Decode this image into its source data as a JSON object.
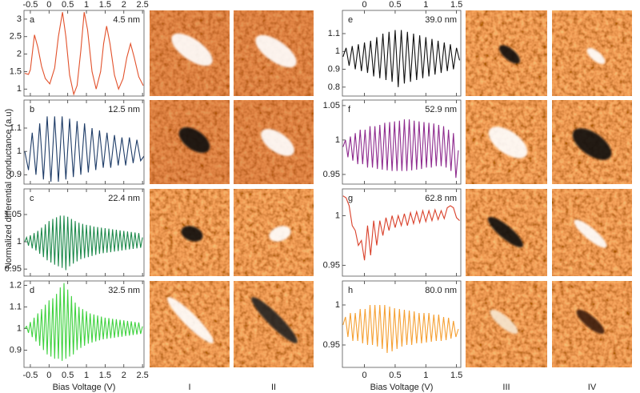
{
  "y_label": "Normalized differential conductance (a.u)",
  "x_label": "Bias Voltage (V)",
  "image_labels": [
    "I",
    "II",
    "III",
    "IV"
  ],
  "chart_data": [
    {
      "type": "line",
      "letter": "a",
      "annotation": "4.5 nm",
      "color": "#e2512b",
      "x": [
        -0.65,
        -0.55,
        -0.5,
        -0.45,
        -0.39,
        -0.3,
        -0.2,
        -0.1,
        0.02,
        0.15,
        0.25,
        0.36,
        0.45,
        0.55,
        0.66,
        0.75,
        0.85,
        0.94,
        1.03,
        1.15,
        1.26,
        1.38,
        1.46,
        1.54,
        1.63,
        1.75,
        1.86,
        1.98,
        2.08,
        2.18,
        2.28,
        2.4,
        2.52
      ],
      "values": [
        1.45,
        1.42,
        1.55,
        2.0,
        2.55,
        2.2,
        1.65,
        1.3,
        1.15,
        1.6,
        2.5,
        3.2,
        2.5,
        1.4,
        0.85,
        1.1,
        2.1,
        3.2,
        2.7,
        1.5,
        1.0,
        1.5,
        2.3,
        2.8,
        2.3,
        1.4,
        1.0,
        1.3,
        1.9,
        2.3,
        1.9,
        1.35,
        1.1
      ],
      "xlim": [
        -0.67,
        2.54
      ],
      "xticks": [
        -0.5,
        0,
        0.5,
        1,
        1.5,
        2,
        2.5
      ],
      "ylim": [
        0.8,
        3.25
      ],
      "yticks": [
        1,
        1.5,
        2,
        2.5,
        3
      ]
    },
    {
      "type": "line",
      "letter": "b",
      "annotation": "12.5 nm",
      "color": "#1f3d68",
      "x": [
        -0.65,
        -0.55,
        -0.45,
        -0.35,
        -0.25,
        -0.15,
        -0.05,
        0.05,
        0.15,
        0.25,
        0.35,
        0.45,
        0.55,
        0.65,
        0.75,
        0.85,
        0.95,
        1.05,
        1.15,
        1.25,
        1.35,
        1.45,
        1.55,
        1.65,
        1.75,
        1.85,
        1.95,
        2.05,
        2.15,
        2.25,
        2.35,
        2.45,
        2.54
      ],
      "values": [
        1.0,
        0.92,
        1.08,
        0.9,
        1.12,
        0.88,
        1.15,
        0.87,
        1.15,
        0.87,
        1.15,
        0.88,
        1.14,
        0.89,
        1.13,
        0.9,
        1.12,
        0.91,
        1.1,
        0.92,
        1.09,
        0.93,
        1.08,
        0.93,
        1.07,
        0.94,
        1.06,
        0.94,
        1.06,
        0.95,
        1.05,
        0.96,
        0.98
      ],
      "xlim": [
        -0.67,
        2.54
      ],
      "xticks": [
        -0.5,
        0,
        0.5,
        1,
        1.5,
        2,
        2.5
      ],
      "ylim": [
        0.86,
        1.22
      ],
      "yticks": [
        0.9,
        1,
        1.1
      ]
    },
    {
      "type": "line",
      "letter": "c",
      "annotation": "22.4 nm",
      "color": "#1e8a4c",
      "x": [
        -0.65,
        -0.6,
        -0.55,
        -0.5,
        -0.45,
        -0.4,
        -0.35,
        -0.3,
        -0.25,
        -0.2,
        -0.15,
        -0.1,
        -0.05,
        0,
        0.05,
        0.1,
        0.15,
        0.2,
        0.25,
        0.3,
        0.35,
        0.4,
        0.45,
        0.5,
        0.55,
        0.6,
        0.65,
        0.7,
        0.75,
        0.8,
        0.85,
        0.9,
        0.95,
        1.0,
        1.05,
        1.1,
        1.15,
        1.2,
        1.25,
        1.3,
        1.35,
        1.4,
        1.45,
        1.5,
        1.55,
        1.6,
        1.65,
        1.7,
        1.75,
        1.8,
        1.85,
        1.9,
        1.95,
        2.0,
        2.05,
        2.1,
        2.15,
        2.2,
        2.25,
        2.3,
        2.35,
        2.4,
        2.45,
        2.5
      ],
      "values": [
        1.0,
        1.008,
        0.993,
        1.012,
        0.988,
        1.016,
        0.984,
        1.02,
        0.978,
        1.026,
        0.972,
        1.032,
        0.966,
        1.038,
        0.962,
        1.042,
        0.958,
        1.045,
        0.955,
        1.048,
        0.952,
        1.048,
        0.948,
        1.046,
        0.955,
        1.042,
        0.96,
        1.038,
        0.964,
        1.035,
        0.968,
        1.033,
        0.97,
        1.031,
        0.972,
        1.03,
        0.974,
        1.028,
        0.976,
        1.027,
        0.978,
        1.026,
        0.979,
        1.025,
        0.98,
        1.024,
        0.981,
        1.023,
        0.982,
        1.022,
        0.983,
        1.021,
        0.984,
        1.02,
        0.985,
        1.019,
        0.986,
        1.018,
        0.987,
        1.017,
        0.988,
        1.016,
        0.989,
        1.008
      ],
      "xlim": [
        -0.67,
        2.54
      ],
      "xticks": [
        -0.5,
        0,
        0.5,
        1,
        1.5,
        2,
        2.5
      ],
      "ylim": [
        0.937,
        1.097
      ],
      "yticks": [
        0.95,
        1,
        1.05
      ]
    },
    {
      "type": "line",
      "letter": "d",
      "annotation": "32.5 nm",
      "color": "#3fd23f",
      "x": [
        -0.65,
        -0.6,
        -0.55,
        -0.5,
        -0.45,
        -0.4,
        -0.35,
        -0.3,
        -0.25,
        -0.2,
        -0.15,
        -0.1,
        -0.05,
        0,
        0.05,
        0.1,
        0.15,
        0.2,
        0.25,
        0.3,
        0.35,
        0.4,
        0.45,
        0.5,
        0.55,
        0.6,
        0.65,
        0.7,
        0.75,
        0.8,
        0.85,
        0.9,
        0.95,
        1.0,
        1.05,
        1.1,
        1.15,
        1.2,
        1.25,
        1.3,
        1.35,
        1.4,
        1.45,
        1.5,
        1.55,
        1.6,
        1.65,
        1.7,
        1.75,
        1.8,
        1.85,
        1.9,
        1.95,
        2.0,
        2.05,
        2.1,
        2.15,
        2.2,
        2.25,
        2.3,
        2.35,
        2.4,
        2.45,
        2.5
      ],
      "values": [
        1.0,
        1.01,
        0.98,
        1.03,
        0.96,
        1.05,
        0.94,
        1.07,
        0.92,
        1.09,
        0.9,
        1.11,
        0.88,
        1.13,
        0.87,
        1.14,
        0.86,
        1.16,
        0.86,
        1.19,
        0.85,
        1.21,
        0.86,
        1.18,
        0.87,
        1.15,
        0.88,
        1.12,
        0.9,
        1.1,
        0.91,
        1.09,
        0.92,
        1.08,
        0.93,
        1.07,
        0.935,
        1.065,
        0.94,
        1.06,
        0.945,
        1.055,
        0.95,
        1.05,
        0.952,
        1.048,
        0.955,
        1.045,
        0.957,
        1.043,
        0.96,
        1.04,
        0.962,
        1.038,
        0.965,
        1.035,
        0.967,
        1.033,
        0.97,
        1.03,
        0.972,
        1.028,
        0.975,
        1.01
      ],
      "xlim": [
        -0.67,
        2.54
      ],
      "xticks": [
        -0.5,
        0,
        0.5,
        1,
        1.5,
        2,
        2.5
      ],
      "ylim": [
        0.82,
        1.22
      ],
      "yticks": [
        0.9,
        1,
        1.1,
        1.2
      ]
    },
    {
      "type": "line",
      "letter": "e",
      "annotation": "39.0 nm",
      "color": "#111111",
      "x": [
        -0.35,
        -0.3,
        -0.25,
        -0.2,
        -0.15,
        -0.1,
        -0.05,
        0,
        0.05,
        0.1,
        0.15,
        0.2,
        0.25,
        0.3,
        0.35,
        0.4,
        0.45,
        0.5,
        0.55,
        0.6,
        0.65,
        0.7,
        0.75,
        0.8,
        0.85,
        0.9,
        0.95,
        1.0,
        1.05,
        1.1,
        1.15,
        1.2,
        1.25,
        1.3,
        1.35,
        1.4,
        1.45,
        1.5,
        1.55
      ],
      "values": [
        0.97,
        1.02,
        0.92,
        1.03,
        0.9,
        1.04,
        0.89,
        1.05,
        0.88,
        1.06,
        0.86,
        1.08,
        0.85,
        1.1,
        0.84,
        1.11,
        0.83,
        1.12,
        0.8,
        1.12,
        0.82,
        1.11,
        0.83,
        1.1,
        0.84,
        1.09,
        0.85,
        1.08,
        0.86,
        1.07,
        0.87,
        1.06,
        0.88,
        1.05,
        0.89,
        1.04,
        0.9,
        1.02,
        0.95
      ],
      "xlim": [
        -0.36,
        1.57
      ],
      "xticks": [
        0,
        0.5,
        1,
        1.5
      ],
      "ylim": [
        0.75,
        1.23
      ],
      "yticks": [
        0.8,
        0.9,
        1,
        1.1
      ]
    },
    {
      "type": "line",
      "letter": "f",
      "annotation": "52.9 nm",
      "color": "#8e2b8e",
      "x": [
        -0.35,
        -0.31,
        -0.27,
        -0.23,
        -0.19,
        -0.15,
        -0.11,
        -0.07,
        -0.03,
        0.01,
        0.05,
        0.09,
        0.13,
        0.17,
        0.21,
        0.25,
        0.29,
        0.33,
        0.37,
        0.41,
        0.45,
        0.49,
        0.53,
        0.57,
        0.61,
        0.65,
        0.69,
        0.73,
        0.77,
        0.81,
        0.85,
        0.89,
        0.93,
        0.97,
        1.01,
        1.05,
        1.09,
        1.13,
        1.17,
        1.21,
        1.25,
        1.29,
        1.33,
        1.37,
        1.41,
        1.45,
        1.49,
        1.53
      ],
      "values": [
        0.99,
        1.0,
        0.975,
        1.005,
        0.97,
        1.01,
        0.965,
        1.015,
        0.965,
        1.015,
        0.96,
        1.02,
        0.96,
        1.02,
        0.958,
        1.022,
        0.957,
        1.025,
        0.956,
        1.026,
        0.955,
        1.027,
        0.955,
        1.028,
        0.955,
        1.03,
        0.955,
        1.03,
        0.956,
        1.028,
        0.957,
        1.027,
        0.958,
        1.026,
        0.96,
        1.025,
        0.96,
        1.024,
        0.962,
        1.022,
        0.962,
        1.02,
        0.96,
        1.015,
        0.955,
        1.01,
        0.945,
        0.985
      ],
      "xlim": [
        -0.36,
        1.57
      ],
      "xticks": [
        0,
        0.5,
        1,
        1.5
      ],
      "ylim": [
        0.936,
        1.058
      ],
      "yticks": [
        0.95,
        1,
        1.05
      ]
    },
    {
      "type": "line",
      "letter": "g",
      "annotation": "62.8 nm",
      "color": "#d9402a",
      "x": [
        -0.35,
        -0.3,
        -0.25,
        -0.2,
        -0.15,
        -0.1,
        -0.05,
        0,
        0.05,
        0.1,
        0.15,
        0.2,
        0.25,
        0.3,
        0.35,
        0.4,
        0.45,
        0.5,
        0.55,
        0.6,
        0.65,
        0.7,
        0.75,
        0.8,
        0.85,
        0.9,
        0.95,
        1.0,
        1.05,
        1.1,
        1.15,
        1.2,
        1.25,
        1.3,
        1.35,
        1.4,
        1.45,
        1.5,
        1.55
      ],
      "values": [
        1.02,
        1.018,
        1.01,
        0.99,
        0.985,
        0.97,
        0.975,
        0.955,
        0.99,
        0.96,
        0.995,
        0.97,
        0.995,
        0.98,
        0.998,
        0.985,
        1.0,
        0.988,
        1.0,
        0.99,
        1.002,
        0.99,
        1.003,
        0.992,
        1.004,
        0.993,
        1.005,
        0.994,
        1.005,
        0.995,
        1.006,
        0.996,
        1.005,
        0.997,
        1.008,
        1.01,
        1.008,
        0.998,
        0.995
      ],
      "xlim": [
        -0.36,
        1.57
      ],
      "xticks": [
        0,
        0.5,
        1,
        1.5
      ],
      "ylim": [
        0.939,
        1.027
      ],
      "yticks": [
        0.95,
        1
      ]
    },
    {
      "type": "line",
      "letter": "h",
      "annotation": "80.0 nm",
      "color": "#f5a033",
      "x": [
        -0.35,
        -0.31,
        -0.27,
        -0.23,
        -0.19,
        -0.15,
        -0.11,
        -0.07,
        -0.03,
        0.01,
        0.05,
        0.09,
        0.13,
        0.17,
        0.21,
        0.25,
        0.29,
        0.33,
        0.37,
        0.41,
        0.45,
        0.49,
        0.53,
        0.57,
        0.61,
        0.65,
        0.69,
        0.73,
        0.77,
        0.81,
        0.85,
        0.89,
        0.93,
        0.97,
        1.01,
        1.05,
        1.09,
        1.13,
        1.17,
        1.21,
        1.25,
        1.29,
        1.33,
        1.37,
        1.41,
        1.45,
        1.49,
        1.53
      ],
      "values": [
        0.975,
        0.985,
        0.96,
        0.99,
        0.955,
        0.99,
        0.955,
        0.995,
        0.952,
        0.995,
        0.95,
        1.0,
        0.95,
        1.0,
        0.948,
        1.0,
        0.945,
        1.0,
        0.94,
        0.998,
        0.942,
        0.996,
        0.945,
        0.995,
        0.948,
        0.994,
        0.95,
        0.993,
        0.95,
        0.992,
        0.952,
        0.99,
        0.952,
        0.99,
        0.953,
        0.99,
        0.954,
        0.988,
        0.955,
        0.988,
        0.955,
        0.985,
        0.956,
        0.984,
        0.958,
        0.98,
        0.96,
        0.97
      ],
      "xlim": [
        -0.36,
        1.57
      ],
      "xticks": [
        0,
        0.5,
        1,
        1.5
      ],
      "ylim": [
        0.922,
        1.03
      ],
      "yticks": [
        0.95,
        1
      ]
    }
  ]
}
